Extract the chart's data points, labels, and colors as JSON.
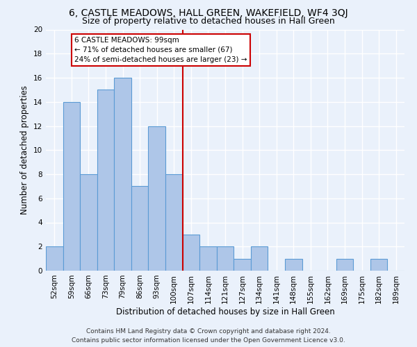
{
  "title": "6, CASTLE MEADOWS, HALL GREEN, WAKEFIELD, WF4 3QJ",
  "subtitle": "Size of property relative to detached houses in Hall Green",
  "xlabel": "Distribution of detached houses by size in Hall Green",
  "ylabel": "Number of detached properties",
  "categories": [
    "52sqm",
    "59sqm",
    "66sqm",
    "73sqm",
    "79sqm",
    "86sqm",
    "93sqm",
    "100sqm",
    "107sqm",
    "114sqm",
    "121sqm",
    "127sqm",
    "134sqm",
    "141sqm",
    "148sqm",
    "155sqm",
    "162sqm",
    "169sqm",
    "175sqm",
    "182sqm",
    "189sqm"
  ],
  "values": [
    2,
    14,
    8,
    15,
    16,
    7,
    12,
    8,
    3,
    2,
    2,
    1,
    2,
    0,
    1,
    0,
    0,
    1,
    0,
    1,
    0
  ],
  "bar_color": "#aec6e8",
  "bar_edge_color": "#5b9bd5",
  "highlight_index": 7,
  "highlight_line_color": "#cc0000",
  "annotation_line1": "6 CASTLE MEADOWS: 99sqm",
  "annotation_line2": "← 71% of detached houses are smaller (67)",
  "annotation_line3": "24% of semi-detached houses are larger (23) →",
  "annotation_box_color": "#ffffff",
  "annotation_box_edge_color": "#cc0000",
  "ylim": [
    0,
    20
  ],
  "yticks": [
    0,
    2,
    4,
    6,
    8,
    10,
    12,
    14,
    16,
    18,
    20
  ],
  "background_color": "#eaf1fb",
  "grid_color": "#ffffff",
  "footer_line1": "Contains HM Land Registry data © Crown copyright and database right 2024.",
  "footer_line2": "Contains public sector information licensed under the Open Government Licence v3.0.",
  "title_fontsize": 10,
  "subtitle_fontsize": 9,
  "xlabel_fontsize": 8.5,
  "ylabel_fontsize": 8.5,
  "tick_fontsize": 7.5,
  "annotation_fontsize": 7.5,
  "footer_fontsize": 6.5
}
